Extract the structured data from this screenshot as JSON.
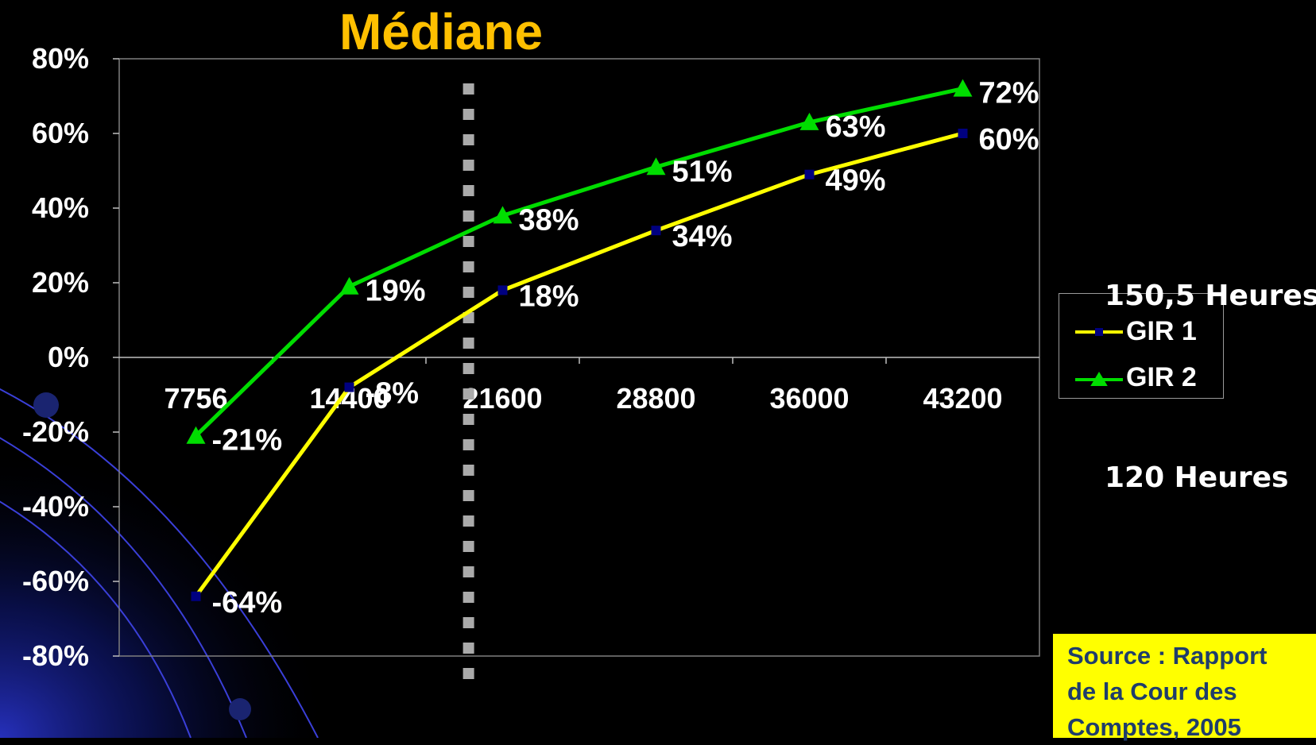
{
  "chart_data": {
    "type": "line",
    "title": "Médiane",
    "categories": [
      "7756",
      "14400",
      "21600",
      "28800",
      "36000",
      "43200"
    ],
    "ylim": [
      -80,
      80
    ],
    "yticks": [
      "80%",
      "60%",
      "40%",
      "20%",
      "0%",
      "-20%",
      "-40%",
      "-60%",
      "-80%"
    ],
    "grid": false,
    "legend_position": "right",
    "median_marker": {
      "label": "Médiane",
      "x": 20000,
      "style": "dashed-vertical",
      "color": "#AAAAAA"
    },
    "series": [
      {
        "name": "GIR 1",
        "values": [
          -64,
          -8,
          18,
          34,
          49,
          60
        ],
        "labels": [
          "-64%",
          "-8%",
          "18%",
          "34%",
          "49%",
          "60%"
        ],
        "color": "#FFFF00",
        "marker": "square",
        "marker_color": "#000080"
      },
      {
        "name": "GIR 2",
        "values": [
          -21,
          19,
          38,
          51,
          63,
          72
        ],
        "labels": [
          "-21%",
          "19%",
          "38%",
          "51%",
          "63%",
          "72%"
        ],
        "color": "#00DD00",
        "marker": "triangle",
        "marker_color": "#00DD00"
      }
    ]
  },
  "annotations": {
    "hours_high": "150,5 Heures",
    "hours_low": "120 Heures"
  },
  "source": {
    "lines": [
      "Source : Rapport",
      "de la Cour des",
      "Comptes, 2005"
    ],
    "background": "#FFFF00",
    "text_color": "#1F3D6B"
  },
  "colors": {
    "background": "#000000",
    "title": "#FFC000",
    "axis_text": "#FFFFFF"
  }
}
